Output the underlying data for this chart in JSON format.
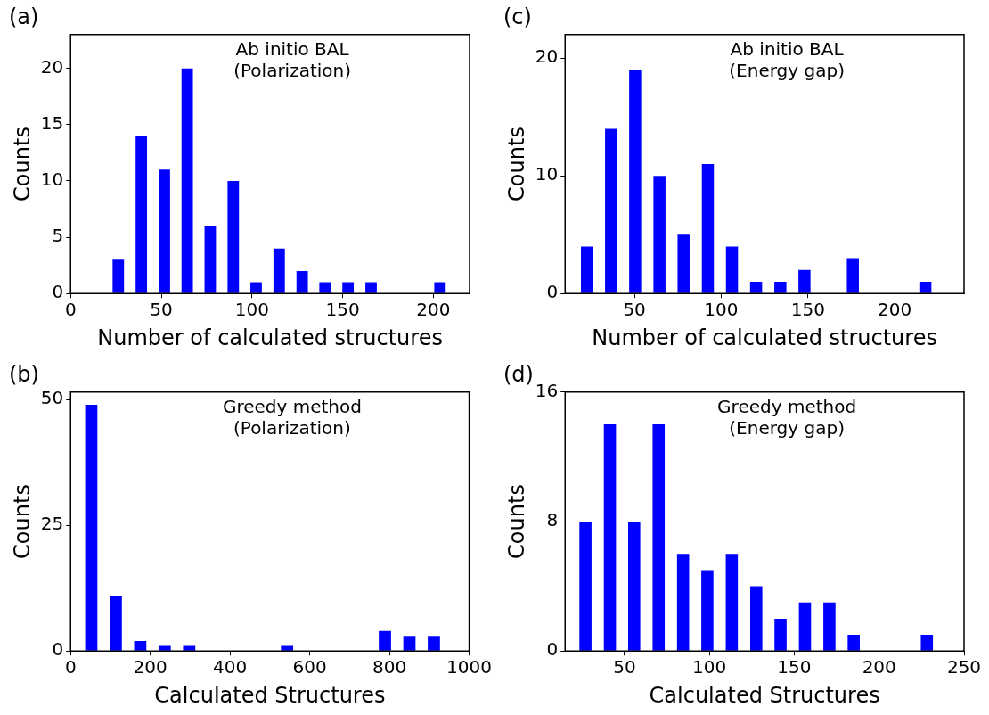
{
  "chart_data": [
    {
      "type": "bar",
      "title": "(a)",
      "xlabel": "Number of calculated structures",
      "ylabel": "Counts",
      "annotations": [
        "Ab initio BAL",
        "(Polarization)"
      ],
      "color": "#0000ff",
      "x": [
        26.3,
        39,
        51.7,
        64.3,
        77,
        89.7,
        102.3,
        115,
        127.7,
        140.3,
        153,
        165.7,
        178.3,
        191,
        203.7
      ],
      "values": [
        3,
        14,
        11,
        20,
        6,
        10,
        1,
        4,
        2,
        1,
        1,
        1,
        0,
        0,
        1
      ],
      "xlim": [
        0,
        220
      ],
      "xticks": [
        0,
        50,
        100,
        150,
        200
      ],
      "ylim": [
        0,
        23
      ],
      "yticks": [
        0,
        5,
        10,
        15,
        20
      ]
    },
    {
      "type": "bar",
      "title": "(c)",
      "xlabel": "Number of calculated structures",
      "ylabel": "Counts",
      "annotations": [
        "Ab initio BAL",
        "(Energy gap)"
      ],
      "color": "#0000ff",
      "x": [
        22.6,
        36.5,
        50.4,
        64.4,
        78.3,
        92.3,
        106.2,
        120.1,
        134.1,
        148,
        161.9,
        175.9,
        189.8,
        203.8,
        217.7
      ],
      "values": [
        4,
        14,
        19,
        10,
        5,
        11,
        4,
        1,
        1,
        2,
        0,
        3,
        0,
        0,
        1
      ],
      "xlim": [
        10,
        240
      ],
      "xticks": [
        50,
        100,
        150,
        200
      ],
      "ylim": [
        0,
        22
      ],
      "yticks": [
        0,
        10,
        20
      ]
    },
    {
      "type": "bar",
      "title": "(b)",
      "xlabel": "Calculated Structures",
      "ylabel": "Counts",
      "annotations": [
        "Greedy method",
        "(Polarization)"
      ],
      "color": "#0000ff",
      "x": [
        51.9,
        113.3,
        174.7,
        236.1,
        297.5,
        358.9,
        420.3,
        481.7,
        543.1,
        604.5,
        665.9,
        727.3,
        788.7,
        850.1,
        911.5
      ],
      "values": [
        49,
        11,
        2,
        1,
        1,
        0,
        0,
        0,
        1,
        0,
        0,
        0,
        4,
        3,
        3
      ],
      "xlim": [
        0,
        1000
      ],
      "xticks": [
        0,
        200,
        400,
        600,
        800,
        1000
      ],
      "ylim": [
        0,
        51.5
      ],
      "yticks": [
        0,
        25,
        50
      ]
    },
    {
      "type": "bar",
      "title": "(d)",
      "xlabel": "Calculated Structures",
      "ylabel": "Counts",
      "annotations": [
        "Greedy method",
        "(Energy gap)"
      ],
      "color": "#0000ff",
      "x": [
        27,
        41.4,
        55.7,
        70.1,
        84.5,
        98.8,
        113.2,
        127.6,
        141.9,
        156.3,
        170.7,
        185,
        199.4,
        213.8,
        228.1
      ],
      "values": [
        8,
        14,
        8,
        14,
        6,
        5,
        6,
        4,
        2,
        3,
        3,
        1,
        0,
        0,
        1
      ],
      "xlim": [
        15,
        250
      ],
      "xticks": [
        50,
        100,
        150,
        200,
        250
      ],
      "ylim": [
        0,
        16
      ],
      "yticks": [
        0,
        8,
        16
      ]
    }
  ]
}
